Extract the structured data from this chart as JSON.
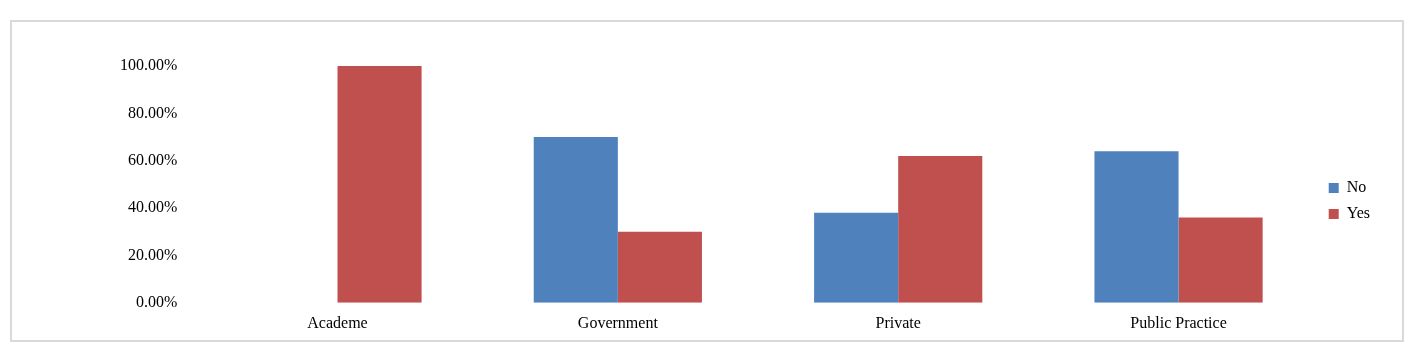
{
  "chart_data": {
    "type": "bar",
    "categories": [
      "Academe",
      "Government",
      "Private",
      "Public Practice"
    ],
    "series": [
      {
        "name": "No",
        "color": "#4f81bd",
        "values": [
          0,
          70,
          38,
          64
        ]
      },
      {
        "name": "Yes",
        "color": "#c0504d",
        "values": [
          100,
          30,
          62,
          36
        ]
      }
    ],
    "ylim": [
      0,
      100
    ],
    "yticks": [
      {
        "value": 0,
        "label": "0.00%"
      },
      {
        "value": 20,
        "label": "20.00%"
      },
      {
        "value": 40,
        "label": "40.00%"
      },
      {
        "value": 60,
        "label": "60.00%"
      },
      {
        "value": 80,
        "label": "80.00%"
      },
      {
        "value": 100,
        "label": "100.00%"
      }
    ],
    "grid": false,
    "legend": "right"
  }
}
